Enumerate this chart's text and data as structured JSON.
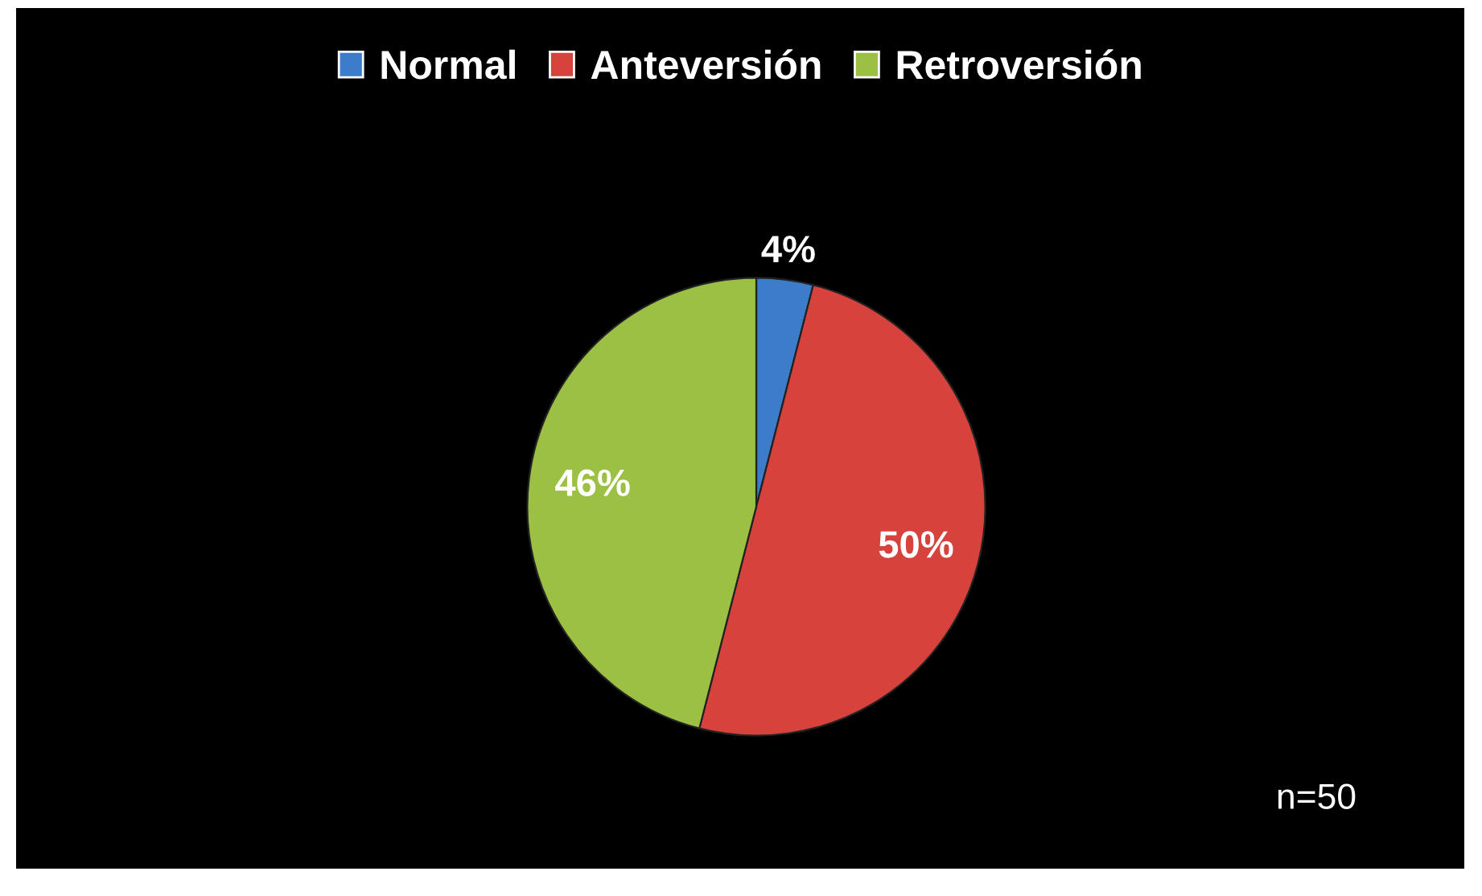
{
  "chart_data": {
    "type": "pie",
    "categories": [
      "Normal",
      "Anteversión",
      "Retroversión"
    ],
    "values": [
      4,
      50,
      46
    ],
    "colors": [
      "#3d7cc9",
      "#d8423d",
      "#9cc043"
    ],
    "value_labels": [
      "4%",
      "50%",
      "46%"
    ],
    "legend": "top",
    "annotations": [
      "n=50"
    ]
  }
}
